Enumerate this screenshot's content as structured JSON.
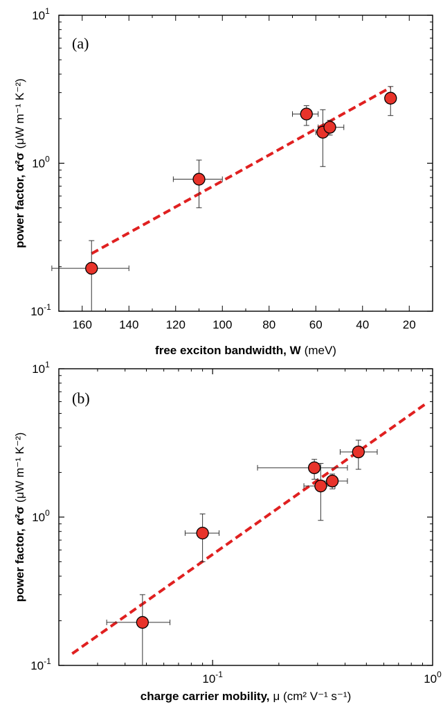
{
  "chart_data": [
    {
      "type": "scatter",
      "panel_label": "(a)",
      "xlabel_bold": "free exciton bandwidth, W",
      "xlabel_unit": "(meV)",
      "ylabel_bold": "power factor, α²σ",
      "ylabel_unit": "(μW m⁻¹ K⁻²)",
      "x_scale": "linear",
      "x_reversed": true,
      "xlim": [
        170,
        10
      ],
      "x_ticks": [
        160,
        140,
        120,
        100,
        80,
        60,
        40,
        20
      ],
      "y_scale": "log",
      "ylim": [
        0.1,
        10
      ],
      "y_tick_labels": [
        {
          "base": "10",
          "exp": "-1"
        },
        {
          "base": "10",
          "exp": "0"
        },
        {
          "base": "10",
          "exp": "1"
        }
      ],
      "points": [
        {
          "x": 156,
          "y": 0.195,
          "xerr_low": 140,
          "xerr_high": 173,
          "yerr_low": 0.1,
          "yerr_high": 0.3
        },
        {
          "x": 110,
          "y": 0.78,
          "xerr_low": 100,
          "xerr_high": 121,
          "yerr_low": 0.5,
          "yerr_high": 1.05
        },
        {
          "x": 64,
          "y": 2.15,
          "xerr_low": 59,
          "xerr_high": 70,
          "yerr_low": 1.8,
          "yerr_high": 2.45
        },
        {
          "x": 57,
          "y": 1.62,
          "xerr_low": 54,
          "xerr_high": 60,
          "yerr_low": 0.95,
          "yerr_high": 2.3
        },
        {
          "x": 54,
          "y": 1.75,
          "xerr_low": 48,
          "xerr_high": 59,
          "yerr_low": 1.55,
          "yerr_high": 1.95
        },
        {
          "x": 28,
          "y": 2.75,
          "xerr_low": 26,
          "xerr_high": 30,
          "yerr_low": 2.1,
          "yerr_high": 3.3
        }
      ],
      "fit_line": {
        "x": [
          156,
          28
        ],
        "y": [
          0.245,
          3.25
        ],
        "color": "#e02020",
        "style": "dashed"
      },
      "marker_color": "#e8332a",
      "grid": false,
      "legend": "none"
    },
    {
      "type": "scatter",
      "panel_label": "(b)",
      "xlabel_bold": "charge carrier mobility,",
      "xlabel_unit": "μ (cm² V⁻¹ s⁻¹)",
      "ylabel_bold": "power factor, α²σ",
      "ylabel_unit": "(μW m⁻¹ K⁻²)",
      "x_scale": "log",
      "xlim": [
        0.02,
        1.0
      ],
      "x_tick_labels": [
        {
          "value": 0.1,
          "base": "10",
          "exp": "-1"
        },
        {
          "value": 1.0,
          "base": "10",
          "exp": "0"
        }
      ],
      "y_scale": "log",
      "ylim": [
        0.1,
        10
      ],
      "y_tick_labels": [
        {
          "base": "10",
          "exp": "-1"
        },
        {
          "base": "10",
          "exp": "0"
        },
        {
          "base": "10",
          "exp": "1"
        }
      ],
      "points": [
        {
          "x": 0.048,
          "y": 0.195,
          "xerr_low": 0.033,
          "xerr_high": 0.064,
          "yerr_low": 0.1,
          "yerr_high": 0.3
        },
        {
          "x": 0.09,
          "y": 0.78,
          "xerr_low": 0.075,
          "xerr_high": 0.107,
          "yerr_low": 0.5,
          "yerr_high": 1.05
        },
        {
          "x": 0.29,
          "y": 2.15,
          "xerr_low": 0.16,
          "xerr_high": 0.41,
          "yerr_low": 1.8,
          "yerr_high": 2.45
        },
        {
          "x": 0.31,
          "y": 1.62,
          "xerr_low": 0.26,
          "xerr_high": 0.36,
          "yerr_low": 0.95,
          "yerr_high": 2.3
        },
        {
          "x": 0.35,
          "y": 1.75,
          "xerr_low": 0.3,
          "xerr_high": 0.41,
          "yerr_low": 1.55,
          "yerr_high": 1.95
        },
        {
          "x": 0.46,
          "y": 2.75,
          "xerr_low": 0.38,
          "xerr_high": 0.56,
          "yerr_low": 2.1,
          "yerr_high": 3.3
        }
      ],
      "fit_line": {
        "x": [
          0.023,
          0.93
        ],
        "y": [
          0.12,
          5.8
        ],
        "color": "#e02020",
        "style": "dashed"
      },
      "marker_color": "#e8332a",
      "grid": false,
      "legend": "none"
    }
  ]
}
